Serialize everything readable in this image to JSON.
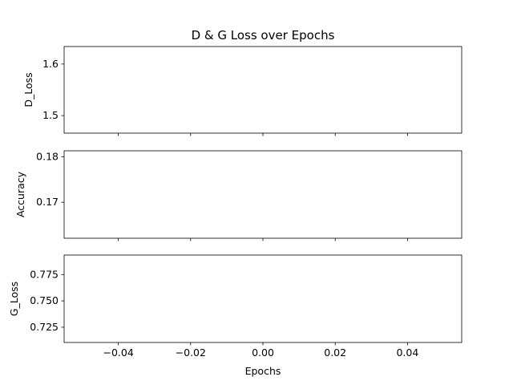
{
  "chart_data": [
    {
      "type": "line",
      "title": "D & G Loss over Epochs",
      "xlabel": "",
      "ylabel": "D_Loss",
      "xlim": [
        -0.055,
        0.055
      ],
      "ylim": [
        1.466,
        1.634
      ],
      "yticks": [
        1.5,
        1.6
      ],
      "ytick_labels": [
        "1.5",
        "1.6"
      ],
      "x_tick_labels_shown": false,
      "series": [
        {
          "x": [],
          "y": []
        }
      ]
    },
    {
      "type": "line",
      "title": "",
      "xlabel": "",
      "ylabel": "Accuracy",
      "xlim": [
        -0.055,
        0.055
      ],
      "ylim": [
        0.1621,
        0.1813
      ],
      "yticks": [
        0.17,
        0.18
      ],
      "ytick_labels": [
        "0.17",
        "0.18"
      ],
      "x_tick_labels_shown": false,
      "series": [
        {
          "x": [],
          "y": []
        }
      ]
    },
    {
      "type": "line",
      "title": "",
      "xlabel": "Epochs",
      "ylabel": "G_Loss",
      "xlim": [
        -0.055,
        0.055
      ],
      "ylim": [
        0.7105,
        0.7935
      ],
      "yticks": [
        0.725,
        0.75,
        0.775
      ],
      "ytick_labels": [
        "0.725",
        "0.750",
        "0.775"
      ],
      "x_tick_labels_shown": true,
      "series": [
        {
          "x": [],
          "y": []
        }
      ]
    }
  ],
  "xticks": [
    -0.04,
    -0.02,
    0.0,
    0.02,
    0.04
  ],
  "xtick_labels": [
    "−0.04",
    "−0.02",
    "0.00",
    "0.02",
    "0.04"
  ],
  "grid": false,
  "colors": {
    "axes": "#000000",
    "background": "#ffffff"
  }
}
